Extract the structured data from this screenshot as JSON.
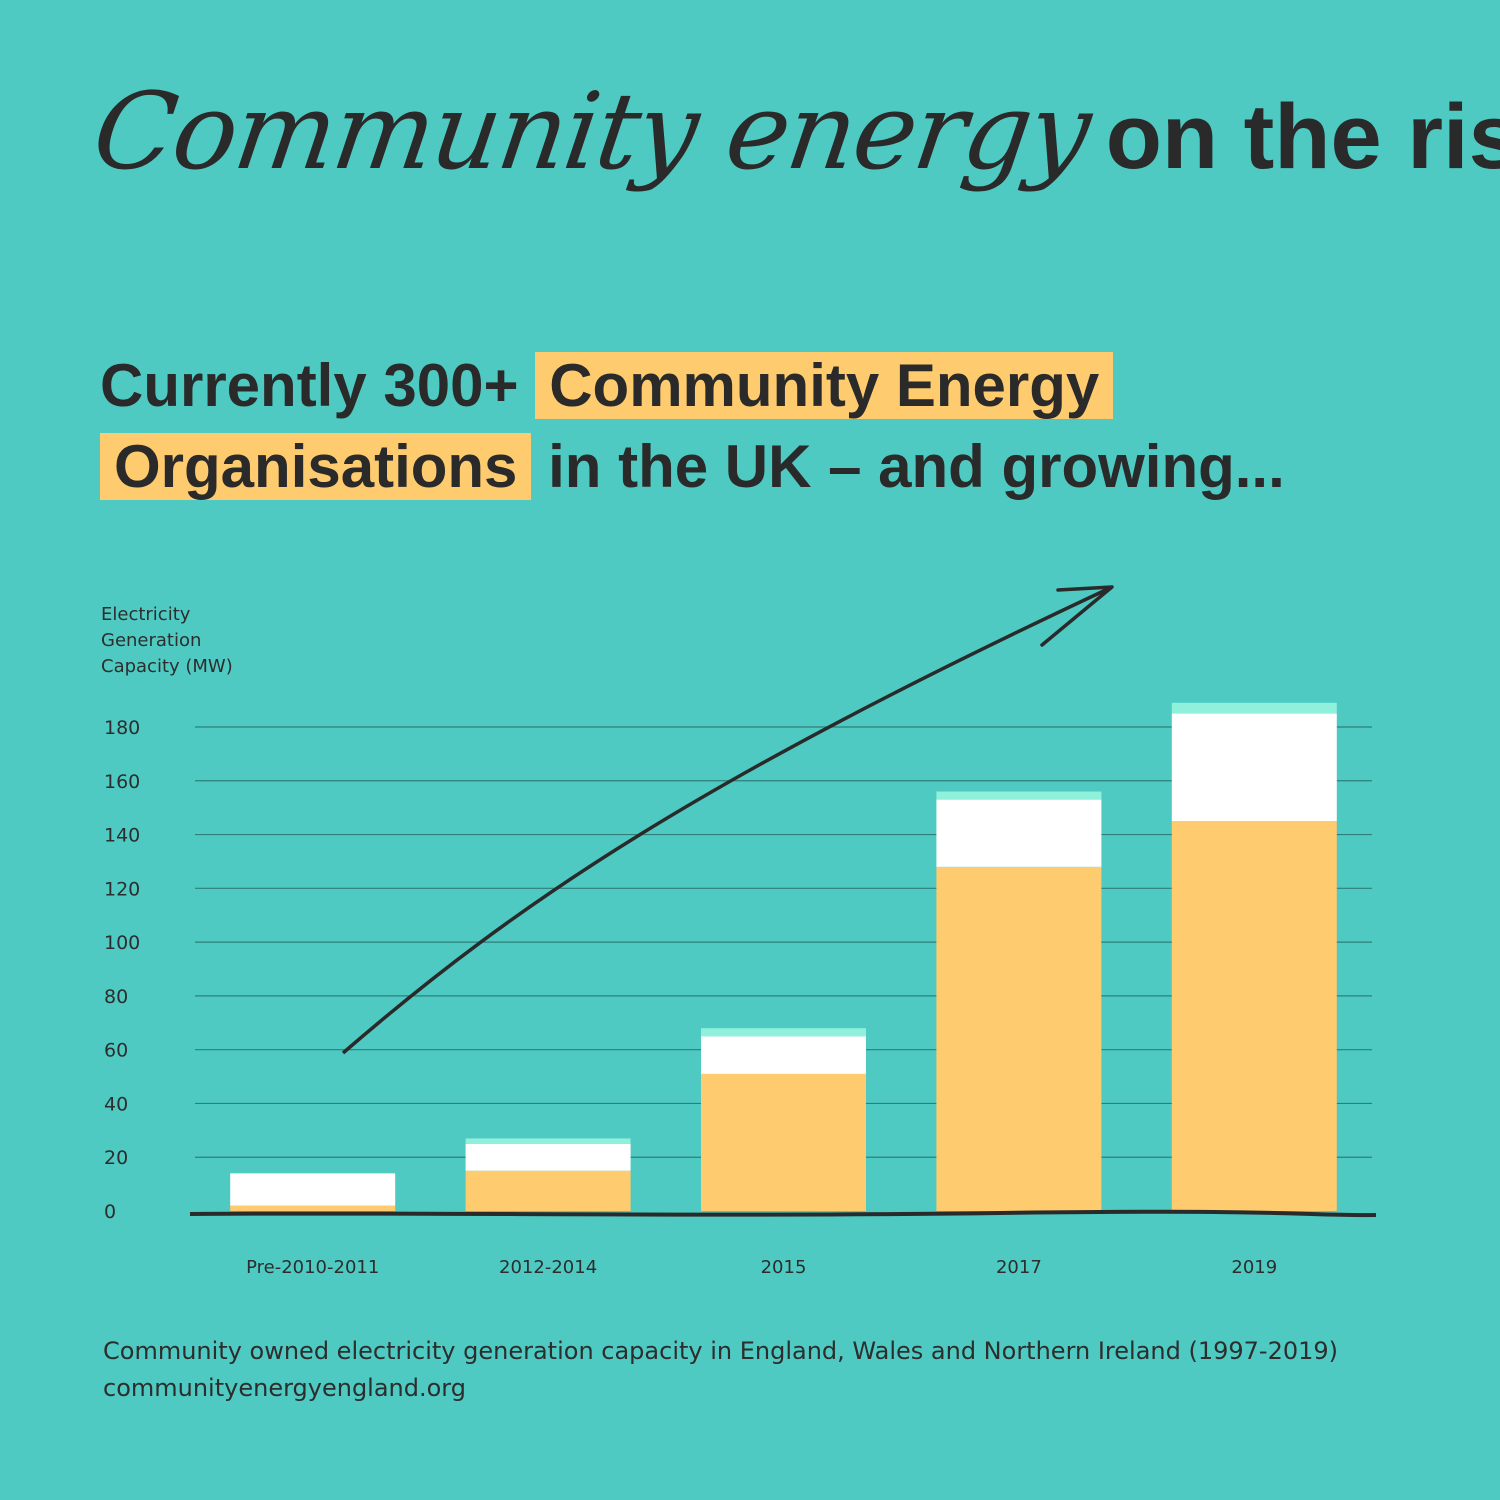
{
  "title": {
    "script": "Community energy",
    "bold": "on the rise"
  },
  "headline": {
    "part1": "Currently 300+",
    "highlight1": "Community Energy",
    "highlight2": "Organisations",
    "part2": "in the UK – and growing..."
  },
  "caption": {
    "line1": "Community owned electricity generation capacity in England, Wales and Northern Ireland (1997-2019)",
    "line2": "communityenergyengland.org"
  },
  "colors": {
    "background": "#4ecac2",
    "yellow": "#fecb6e",
    "white": "#ffffff",
    "mint": "#8ff0dc",
    "ink": "#2a2a2a"
  },
  "chart_data": {
    "type": "bar",
    "stacked": true,
    "ylabel": "Electricity Generation Capacity (MW)",
    "xlabel": "",
    "ylim": [
      0,
      180
    ],
    "yticks": [
      0,
      20,
      40,
      60,
      80,
      100,
      120,
      140,
      160,
      180
    ],
    "grid": true,
    "categories": [
      "Pre-2010-2011",
      "2012-2014",
      "2015",
      "2017",
      "2019"
    ],
    "series": [
      {
        "color": "#fecb6e",
        "values": [
          2,
          15,
          51,
          128,
          145
        ]
      },
      {
        "color": "#ffffff",
        "values": [
          12,
          10,
          14,
          25,
          40
        ]
      },
      {
        "color": "#8ff0dc",
        "values": [
          0,
          2,
          3,
          3,
          4
        ]
      }
    ]
  }
}
